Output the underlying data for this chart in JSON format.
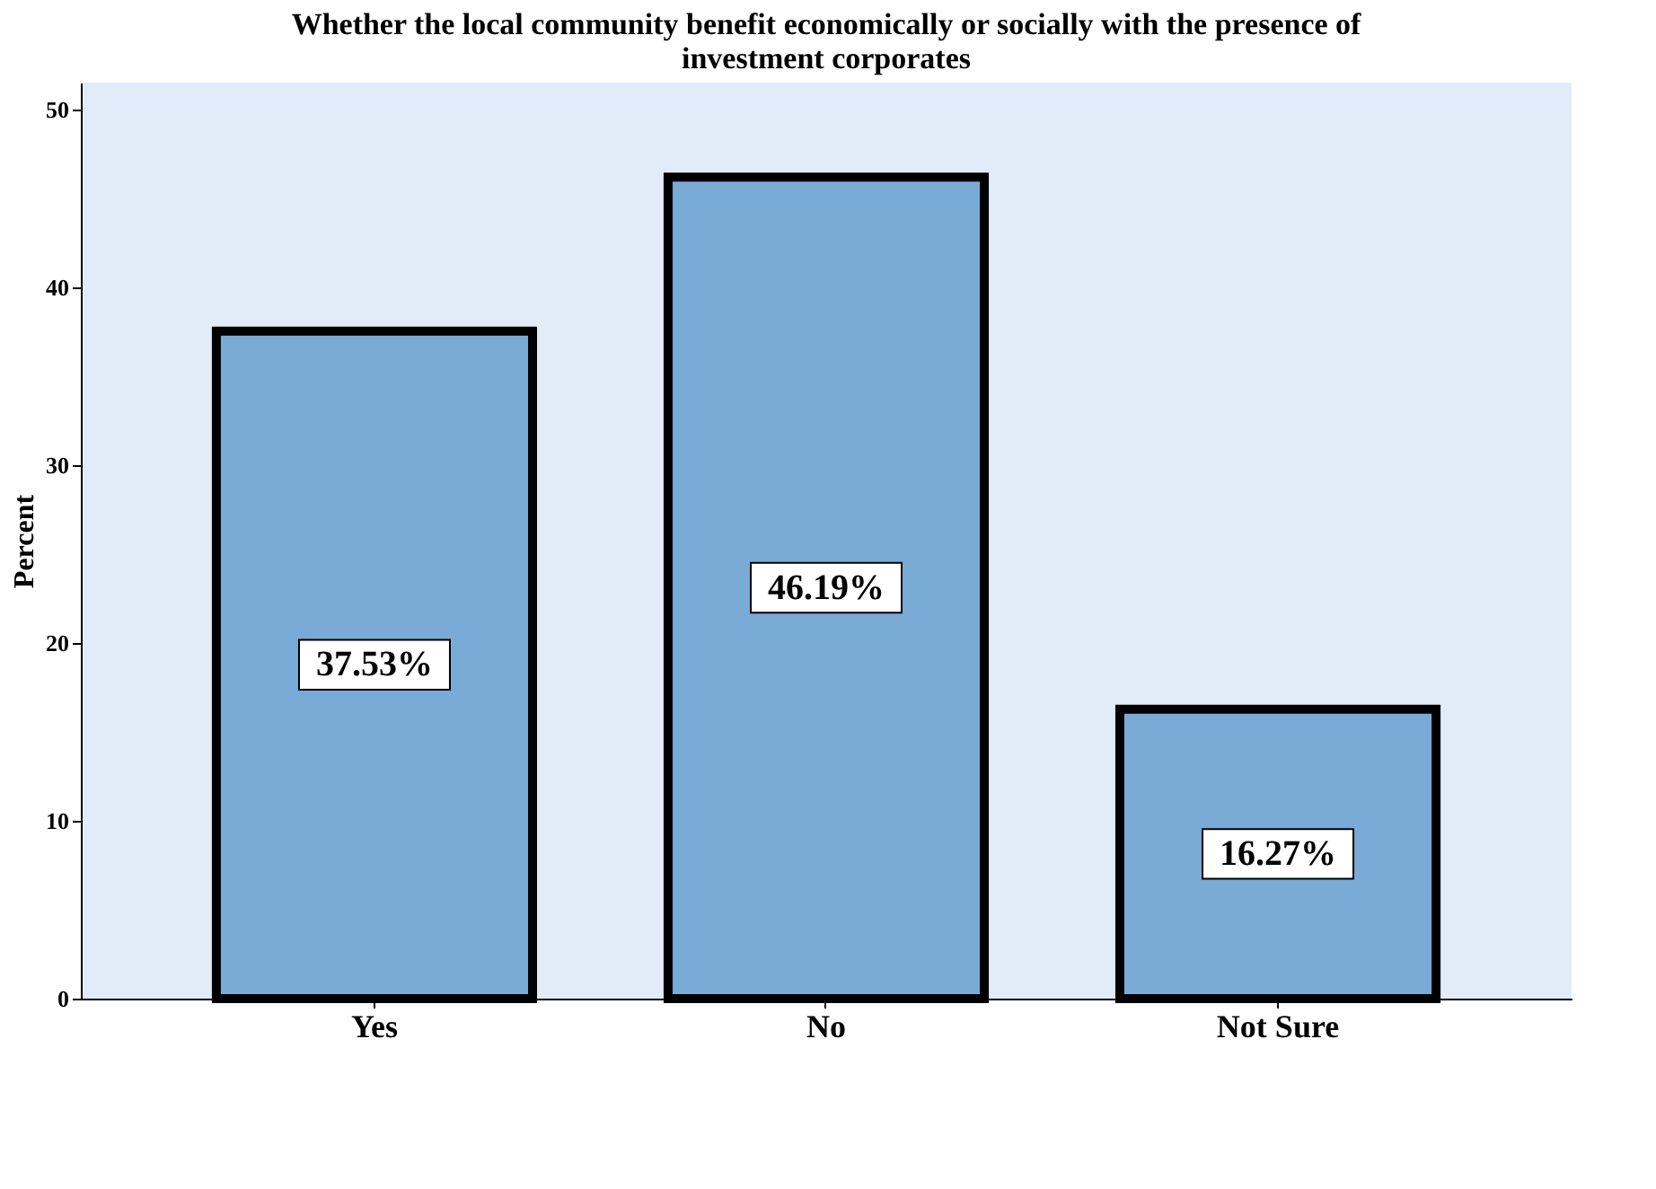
{
  "chart_data": {
    "type": "bar",
    "title": [
      "Whether the local community benefit economically or socially with the presence of",
      "investment corporates"
    ],
    "categories": [
      "Yes",
      "No",
      "Not Sure"
    ],
    "values": [
      37.53,
      46.19,
      16.27
    ],
    "value_labels": [
      "37.53%",
      "46.19%",
      "16.27%"
    ],
    "color": "#7aaad6",
    "ylabel": "Percent",
    "ylim": [
      0,
      51.5
    ],
    "yticks": [
      0,
      10,
      20,
      30,
      40,
      50
    ],
    "grid": false
  }
}
